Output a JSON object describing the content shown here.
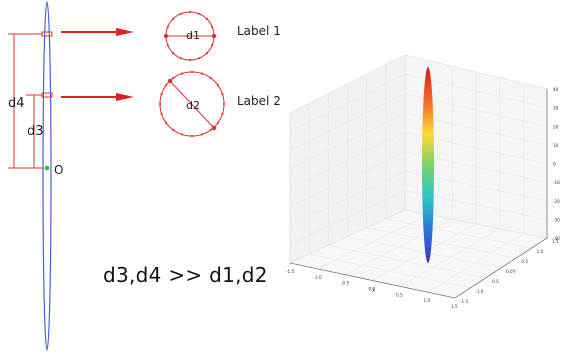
{
  "diagram": {
    "left_labels": {
      "d4": "d4",
      "d3": "d3",
      "origin": "O"
    },
    "circles": [
      {
        "inner_label": "d1",
        "side_label": "Label 1"
      },
      {
        "inner_label": "d2",
        "side_label": "Label 2"
      }
    ],
    "relation": "d3,d4  >>  d1,d2"
  },
  "plot3d": {
    "x_ticks": [
      "-1.5",
      "-1.0",
      "-0.5",
      "0.0",
      "0.5",
      "1.0",
      "1.5"
    ],
    "y_ticks": [
      "-1.5",
      "-1.0",
      "-0.5",
      "0.0",
      "0.5",
      "1.0",
      "1.5"
    ],
    "z_ticks": [
      "-40",
      "-30",
      "-20",
      "-10",
      "0",
      "10",
      "20",
      "30",
      "40"
    ],
    "x_label": "X",
    "y_label": "Y",
    "colormap": "jet"
  },
  "colors": {
    "ellipse": "#4a5fd8",
    "arrow": "#e02020",
    "circle": "#e03030",
    "dimension": "#e03030",
    "origin_point": "#22cc22",
    "grid": "#e4e4e4",
    "pane": "#f2f2f2"
  }
}
